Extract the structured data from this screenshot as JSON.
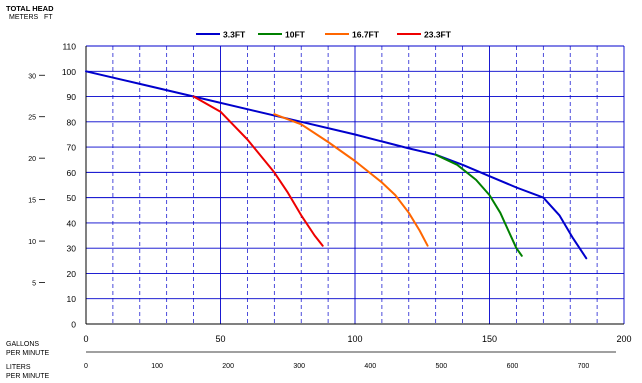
{
  "chart_data": {
    "type": "line",
    "title": "TOTAL HEAD",
    "y_units": "METERS   FT",
    "x_primary_label": [
      "GALLONS",
      "PER MINUTE"
    ],
    "x_secondary_label": [
      "LITERS",
      "PER MINUTE"
    ],
    "xlim_gpm": [
      0,
      200
    ],
    "ylim_ft": [
      0,
      110
    ],
    "ylim_m": [
      0,
      33.528
    ],
    "x_ticks_gpm": [
      "0",
      "50",
      "100",
      "150",
      "200"
    ],
    "y_ticks_ft": [
      "0",
      "10",
      "20",
      "30",
      "40",
      "50",
      "60",
      "70",
      "80",
      "90",
      "100",
      "110"
    ],
    "y_ticks_m": [
      "5",
      "10",
      "15",
      "20",
      "25",
      "30"
    ],
    "x_ticks_lpm": [
      "0",
      "100",
      "200",
      "300",
      "400",
      "500",
      "600",
      "700"
    ],
    "grid": true,
    "legend_position": "top",
    "series": [
      {
        "name": "3.3FT",
        "color": "#0000cc",
        "points": [
          [
            0,
            100
          ],
          [
            20,
            95
          ],
          [
            40,
            90
          ],
          [
            60,
            85
          ],
          [
            80,
            80
          ],
          [
            100,
            75
          ],
          [
            120,
            69.5
          ],
          [
            130,
            67
          ],
          [
            140,
            63
          ],
          [
            150,
            58.5
          ],
          [
            160,
            54
          ],
          [
            170,
            50
          ],
          [
            176,
            43
          ],
          [
            181,
            34
          ],
          [
            186,
            26
          ]
        ]
      },
      {
        "name": "10FT",
        "color": "#008000",
        "points": [
          [
            130,
            67
          ],
          [
            138,
            63
          ],
          [
            145,
            57
          ],
          [
            150,
            51
          ],
          [
            154,
            44
          ],
          [
            157,
            37
          ],
          [
            160,
            30
          ],
          [
            162,
            27
          ]
        ]
      },
      {
        "name": "16.7FT",
        "color": "#ff6600",
        "points": [
          [
            70,
            83
          ],
          [
            80,
            79
          ],
          [
            90,
            72
          ],
          [
            100,
            64.5
          ],
          [
            110,
            56
          ],
          [
            115,
            51
          ],
          [
            120,
            44
          ],
          [
            124,
            37
          ],
          [
            127,
            31
          ]
        ]
      },
      {
        "name": "23.3FT",
        "color": "#ee0000",
        "points": [
          [
            40,
            90
          ],
          [
            50,
            84
          ],
          [
            60,
            73
          ],
          [
            70,
            60
          ],
          [
            75,
            52
          ],
          [
            80,
            43
          ],
          [
            85,
            35
          ],
          [
            88,
            31
          ]
        ]
      }
    ]
  }
}
